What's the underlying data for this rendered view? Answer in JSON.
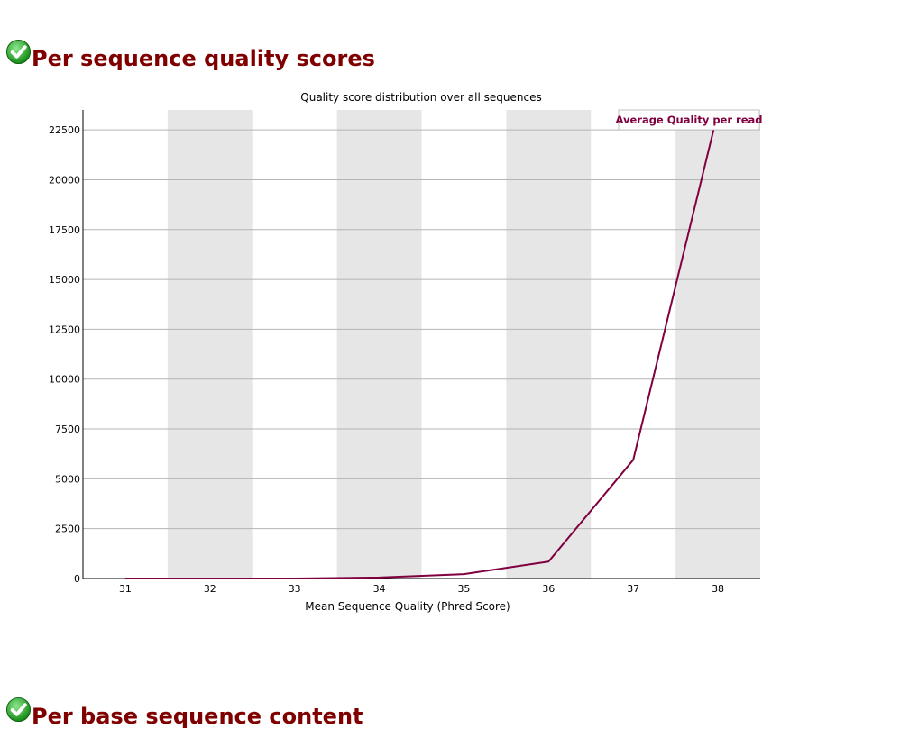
{
  "sections": [
    {
      "title": "Per sequence quality scores",
      "status_icon": "check-pass-icon",
      "status_color": "#1b9e1b"
    },
    {
      "title": "Per base sequence content",
      "status_icon": "check-pass-icon",
      "status_color": "#1b9e1b"
    }
  ],
  "colors": {
    "heading": "#800000",
    "line": "#800040",
    "band": "#e6e6e6",
    "grid": "#b4b4b4",
    "axis": "#000000"
  },
  "chart_data": {
    "type": "line",
    "title": "Quality score distribution over all sequences",
    "xlabel": "Mean Sequence Quality (Phred Score)",
    "ylabel": "",
    "x": [
      31,
      32,
      33,
      34,
      35,
      36,
      37,
      38
    ],
    "x_tick_labels": [
      "31",
      "32",
      "33",
      "34",
      "35",
      "36",
      "37",
      "38"
    ],
    "y_ticks": [
      0,
      2500,
      5000,
      7500,
      10000,
      12500,
      15000,
      17500,
      20000,
      22500
    ],
    "y_tick_labels": [
      "0",
      "2500",
      "5000",
      "7500",
      "10000",
      "12500",
      "15000",
      "17500",
      "20000",
      "22500"
    ],
    "ylim": [
      0,
      23500
    ],
    "xlim": [
      30.5,
      38.5
    ],
    "grid": true,
    "alternating_bands": true,
    "legend_position": "top-right",
    "series": [
      {
        "name": "Average Quality per read",
        "values": [
          0,
          0,
          0,
          50,
          220,
          850,
          5950,
          23400
        ]
      }
    ]
  }
}
